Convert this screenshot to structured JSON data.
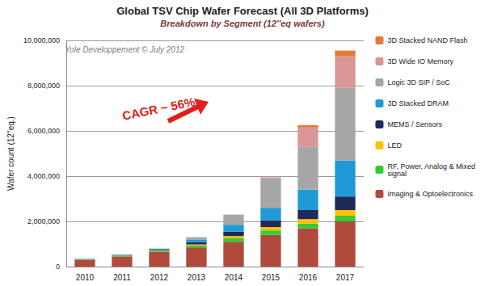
{
  "chart_data": {
    "type": "bar",
    "title": "Global TSV Chip Wafer Forecast (All 3D Platforms)",
    "subtitle": "Breakdown by Segment (12''eq wafers)",
    "watermark": "Yole Developpement © July 2012",
    "annotation": "CAGR ~ 56%",
    "y_label": "Wafer count (12''eq.)",
    "categories": [
      "2010",
      "2011",
      "2012",
      "2013",
      "2014",
      "2015",
      "2016",
      "2017"
    ],
    "stacked": true,
    "grid": true,
    "legend": "right",
    "ylim": [
      0,
      10000000
    ],
    "yticks": [
      0,
      {
        "value": 2000000,
        "label": "2,000,000"
      },
      {
        "value": 4000000,
        "label": "4,000,000"
      },
      {
        "value": 6000000,
        "label": "6,000,000"
      },
      {
        "value": 8000000,
        "label": "8,000,000"
      },
      {
        "value": 10000000,
        "label": "10,000,000"
      }
    ],
    "series": [
      {
        "name": "Imaging & Optoelectronics",
        "color": "#b04a3c",
        "values": [
          300000,
          450000,
          650000,
          850000,
          1100000,
          1400000,
          1700000,
          2000000
        ]
      },
      {
        "name": "RF, Power, Analog & Mixed signal",
        "color": "#33cc33",
        "values": [
          20000,
          30000,
          50000,
          80000,
          150000,
          200000,
          200000,
          250000
        ]
      },
      {
        "name": "LED",
        "color": "#ffc000",
        "values": [
          5000,
          10000,
          20000,
          50000,
          100000,
          150000,
          200000,
          250000
        ]
      },
      {
        "name": "MEMS / Sensors",
        "color": "#1f2a5a",
        "values": [
          10000,
          20000,
          30000,
          100000,
          200000,
          300000,
          400000,
          600000
        ]
      },
      {
        "name": "3D Stacked DRAM",
        "color": "#1f9ad6",
        "values": [
          10000,
          20000,
          30000,
          120000,
          300000,
          550000,
          900000,
          1600000
        ]
      },
      {
        "name": "Logic 3D SIP / SoC",
        "color": "#a6a6a6",
        "values": [
          5000,
          10000,
          20000,
          100000,
          450000,
          1300000,
          1900000,
          3200000
        ]
      },
      {
        "name": "3D Wide IO Memory",
        "color": "#d99694",
        "values": [
          0,
          0,
          0,
          0,
          0,
          50000,
          850000,
          1400000
        ]
      },
      {
        "name": "3D Stacked NAND Flash",
        "color": "#e07b39",
        "values": [
          0,
          0,
          0,
          0,
          0,
          0,
          100000,
          250000
        ]
      }
    ]
  }
}
